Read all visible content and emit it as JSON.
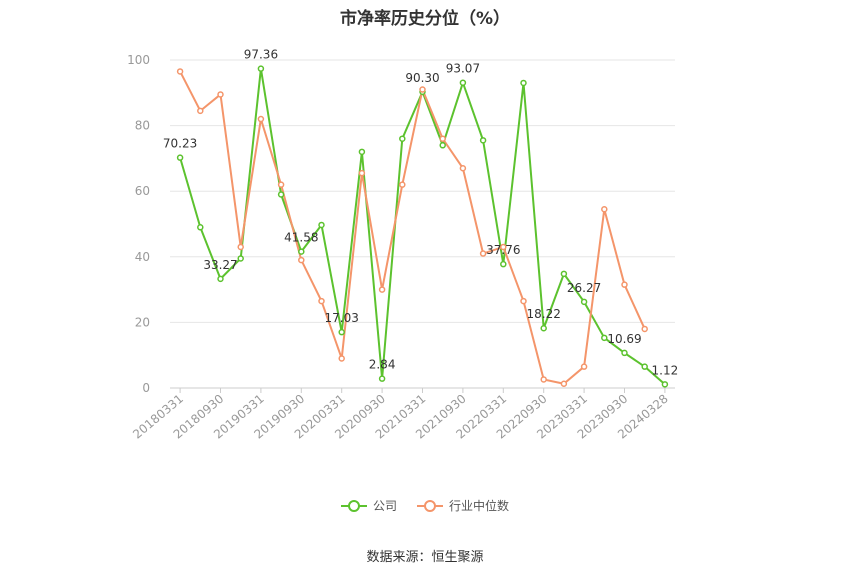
{
  "chart_data": {
    "type": "line",
    "title": "市净率历史分位（%）",
    "xlabel": "",
    "ylabel": "",
    "ylim": [
      0,
      100
    ],
    "yticks": [
      0,
      20,
      40,
      60,
      80,
      100
    ],
    "grid": true,
    "legend_position": "bottom",
    "x": [
      "20180331",
      "20180630",
      "20180930",
      "20181231",
      "20190331",
      "20190630",
      "20190930",
      "20191231",
      "20200331",
      "20200630",
      "20200930",
      "20201231",
      "20210331",
      "20210630",
      "20210930",
      "20211231",
      "20220331",
      "20220630",
      "20220930",
      "20221231",
      "20230331",
      "20230630",
      "20230930",
      "20231231",
      "20240328"
    ],
    "xtick_labels": [
      "20180331",
      "20180930",
      "20190331",
      "20190930",
      "20200331",
      "20200930",
      "20210331",
      "20210930",
      "20220331",
      "20220930",
      "20230331",
      "20230930",
      "20240328"
    ],
    "series": [
      {
        "name": "公司",
        "color": "#5cc22e",
        "values": [
          70.23,
          49,
          33.27,
          39.5,
          97.36,
          59,
          41.58,
          49.7,
          17.03,
          72,
          2.84,
          76,
          90.3,
          74,
          93.07,
          75.5,
          37.76,
          93,
          18.22,
          34.8,
          26.27,
          15.3,
          10.69,
          6.5,
          1.12
        ],
        "labels": {
          "0": "70.23",
          "2": "33.27",
          "4": "97.36",
          "6": "41.58",
          "8": "17.03",
          "10": "2.84",
          "12": "90.30",
          "14": "93.07",
          "16": "37.76",
          "18": "18.22",
          "20": "26.27",
          "22": "10.69",
          "24": "1.12"
        }
      },
      {
        "name": "行业中位数",
        "color": "#f4956a",
        "values": [
          96.5,
          84.5,
          89.5,
          43,
          82,
          62,
          39,
          26.5,
          9,
          65.5,
          30,
          62,
          91,
          76,
          67,
          41,
          43,
          26.5,
          2.6,
          1.3,
          6.5,
          54.5,
          31.5,
          18,
          null
        ],
        "labels": {}
      }
    ]
  },
  "legend": {
    "company": "公司",
    "industry": "行业中位数"
  },
  "source": "数据来源：恒生聚源"
}
